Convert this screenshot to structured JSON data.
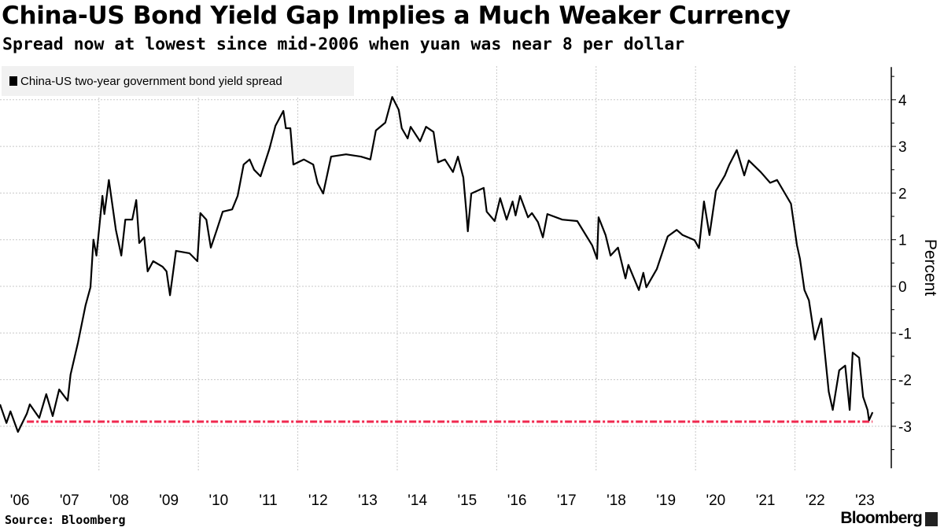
{
  "header": {
    "title": "China-US Bond Yield Gap Implies a Much Weaker Currency",
    "subtitle": "Spread now at lowest since mid-2006 when yuan was near 8 per dollar"
  },
  "footer": {
    "source": "Source: Bloomberg",
    "logo": "Bloomberg"
  },
  "chart_data": {
    "type": "line",
    "title": "China-US Bond Yield Gap Implies a Much Weaker Currency",
    "ylabel": "Percent",
    "xlabel": "",
    "ylim": [
      -3.9,
      4.7
    ],
    "yticks": [
      4,
      3,
      2,
      1,
      0,
      -1,
      -2,
      -3
    ],
    "ytick_labels": [
      "4",
      "3",
      "2",
      "1",
      "0",
      "-1",
      "-2",
      "-3"
    ],
    "xticks": [
      2006,
      2007,
      2008,
      2009,
      2010,
      2011,
      2012,
      2013,
      2014,
      2015,
      2016,
      2017,
      2018,
      2019,
      2020,
      2021,
      2022,
      2023
    ],
    "xtick_labels": [
      "'06",
      "'07",
      "'08",
      "'09",
      "'10",
      "'11",
      "'12",
      "'13",
      "'14",
      "'15",
      "'16",
      "'17",
      "'18",
      "'19",
      "'20",
      "'21",
      "'22",
      "'23"
    ],
    "grid": true,
    "legend_position": "top-left",
    "series": [
      {
        "name": "China-US two-year government bond yield spread",
        "color": "#000000",
        "x": [
          2005.54,
          2005.67,
          2005.75,
          2005.9,
          2006.08,
          2006.14,
          2006.33,
          2006.47,
          2006.6,
          2006.73,
          2006.9,
          2006.96,
          2007.11,
          2007.26,
          2007.36,
          2007.42,
          2007.48,
          2007.6,
          2007.64,
          2007.73,
          2007.87,
          2007.98,
          2008.06,
          2008.2,
          2008.28,
          2008.34,
          2008.44,
          2008.51,
          2008.62,
          2008.81,
          2008.89,
          2008.96,
          2009.08,
          2009.35,
          2009.51,
          2009.57,
          2009.69,
          2009.78,
          2009.9,
          2010.02,
          2010.21,
          2010.32,
          2010.44,
          2010.56,
          2010.65,
          2010.78,
          2010.96,
          2011.08,
          2011.24,
          2011.29,
          2011.38,
          2011.44,
          2011.65,
          2011.84,
          2011.93,
          2012.04,
          2012.2,
          2012.5,
          2012.8,
          2012.99,
          2013.1,
          2013.29,
          2013.43,
          2013.56,
          2013.62,
          2013.74,
          2013.8,
          2013.99,
          2014.11,
          2014.26,
          2014.35,
          2014.49,
          2014.65,
          2014.75,
          2014.86,
          2014.92,
          2014.95,
          2015.02,
          2015.27,
          2015.33,
          2015.49,
          2015.6,
          2015.73,
          2015.85,
          2015.91,
          2016.0,
          2016.16,
          2016.24,
          2016.36,
          2016.46,
          2016.55,
          2016.85,
          2017.15,
          2017.45,
          2017.55,
          2017.58,
          2017.72,
          2017.82,
          2017.97,
          2018.12,
          2018.18,
          2018.39,
          2018.48,
          2018.54,
          2018.75,
          2018.91,
          2018.97,
          2019.15,
          2019.27,
          2019.51,
          2019.6,
          2019.7,
          2019.81,
          2019.94,
          2020.12,
          2020.21,
          2020.36,
          2020.51,
          2020.6,
          2020.84,
          2021.03,
          2021.17,
          2021.33,
          2021.45,
          2021.57,
          2021.63,
          2021.72,
          2021.81,
          2021.93,
          2022.06,
          2022.21,
          2022.29,
          2022.42,
          2022.54,
          2022.63,
          2022.69,
          2022.82,
          2022.9,
          2022.99,
          2023.02,
          2023.09
        ],
        "y": [
          -2.53,
          -2.93,
          -2.68,
          -3.12,
          -2.73,
          -2.53,
          -2.82,
          -2.31,
          -2.78,
          -2.21,
          -2.45,
          -1.89,
          -1.2,
          -0.41,
          -0.02,
          1.0,
          0.66,
          1.94,
          1.55,
          2.28,
          1.21,
          0.66,
          1.43,
          1.43,
          1.85,
          0.93,
          1.05,
          0.32,
          0.54,
          0.42,
          0.32,
          -0.19,
          0.76,
          0.71,
          0.54,
          1.57,
          1.43,
          0.83,
          1.21,
          1.6,
          1.65,
          1.94,
          2.61,
          2.72,
          2.5,
          2.36,
          2.95,
          3.44,
          3.76,
          3.39,
          3.39,
          2.61,
          2.72,
          2.61,
          2.21,
          1.99,
          2.78,
          2.83,
          2.78,
          2.72,
          3.34,
          3.51,
          4.06,
          3.78,
          3.39,
          3.17,
          3.42,
          3.11,
          3.42,
          3.31,
          2.66,
          2.72,
          2.45,
          2.78,
          2.33,
          1.6,
          1.18,
          1.99,
          2.11,
          1.6,
          1.4,
          1.89,
          1.43,
          1.82,
          1.52,
          1.94,
          1.48,
          1.57,
          1.38,
          1.05,
          1.55,
          1.43,
          1.4,
          0.88,
          0.59,
          1.48,
          1.1,
          0.66,
          0.83,
          0.17,
          0.46,
          -0.08,
          0.29,
          -0.02,
          0.37,
          0.88,
          1.07,
          1.21,
          1.1,
          0.99,
          0.82,
          1.82,
          1.1,
          2.05,
          2.38,
          2.61,
          2.92,
          2.38,
          2.7,
          2.45,
          2.22,
          2.28,
          1.99,
          1.77,
          0.88,
          0.59,
          -0.08,
          -0.3,
          -1.14,
          -0.69,
          -2.26,
          -2.65,
          -1.8,
          -1.7,
          -2.65,
          -1.42,
          -1.53,
          -2.37,
          -2.65,
          -2.87,
          -2.7
        ]
      }
    ],
    "reference_line": {
      "value": -2.9,
      "from_x": 2006.08,
      "to_x": 2023.09,
      "color": "#f0294f",
      "style": "dash-dot"
    }
  }
}
